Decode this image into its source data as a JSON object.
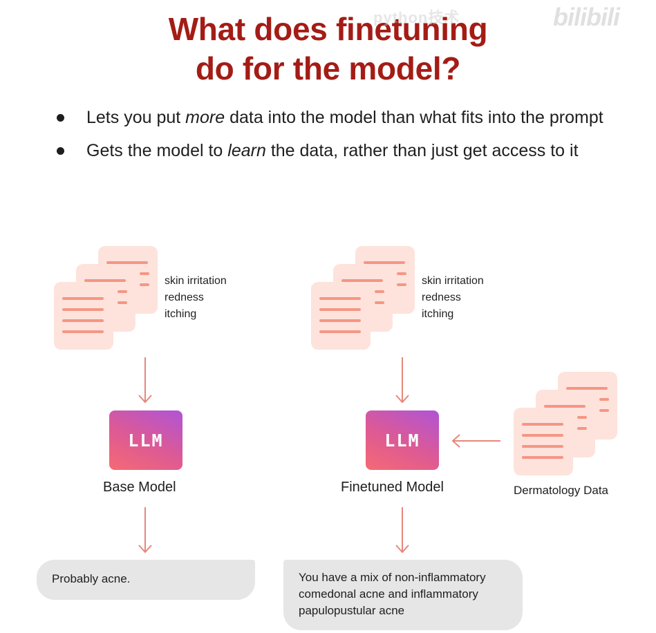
{
  "title": {
    "line1": "What does finetuning",
    "line2": "do for the model?"
  },
  "watermark": {
    "text": "python技术",
    "logo": "bilibili"
  },
  "bullets": [
    {
      "before": "Lets you put ",
      "emph": "more",
      "after": " data into the model than what fits into the prompt"
    },
    {
      "before": "Gets the model to ",
      "emph": "learn",
      "after": " the data, rather than just get access to it"
    }
  ],
  "left_panel": {
    "symptoms": [
      "skin irritation",
      "redness",
      "itching"
    ],
    "llm_label": "LLM",
    "model_label": "Base Model",
    "response": "Probably acne."
  },
  "right_panel": {
    "symptoms": [
      "skin irritation",
      "redness",
      "itching"
    ],
    "llm_label": "LLM",
    "model_label": "Finetuned Model",
    "response": "You have a mix of non-inflammatory comedonal acne and inflammatory papulopustular acne",
    "data_label": "Dermatology Data"
  },
  "colors": {
    "title": "#a41c16",
    "doc_fill": "#fde3dc",
    "doc_lines": "#f59684",
    "arrow": "#e8867a",
    "bubble": "#e6e6e6"
  }
}
